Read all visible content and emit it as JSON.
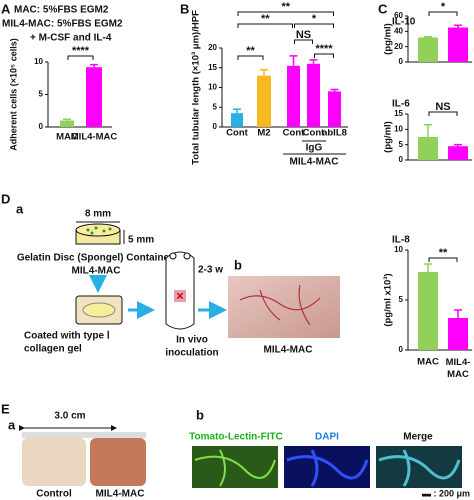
{
  "panels": {
    "A": {
      "label": "A",
      "conditions": [
        "MAC: 5%FBS EGM2",
        "MIL4-MAC: 5%FBS EGM2",
        "+ M-CSF and IL-4"
      ]
    },
    "B": {
      "label": "B",
      "groups": [
        "IgG",
        "MIL4-MAC"
      ]
    },
    "C": {
      "label": "C"
    },
    "D": {
      "label": "D",
      "sub_a": "a",
      "sub_b": "b",
      "disc_width": "8 mm",
      "disc_height": "5 mm",
      "disc_text": [
        "Gelatin Disc (Spongel) Contained",
        "MIL4-MAC"
      ],
      "coat_text": [
        "Coated with type Ⅰ",
        "collagen gel"
      ],
      "duration": "2-3 w",
      "inoculation": [
        "In vivo",
        "inoculation"
      ],
      "photo_label": "MIL4-MAC"
    },
    "E": {
      "label": "E",
      "sub_a": "a",
      "sub_b": "b",
      "ruler": "3.0 cm",
      "photo_labels": [
        "Control",
        "MIL4-MAC"
      ],
      "stains": [
        "Tomato-Lectin-FITC",
        "DAPI",
        "Merge"
      ],
      "scale": "▬ : 200 μm"
    }
  },
  "chart_data": [
    {
      "type": "bar",
      "ylabel": "Adherent cells (×10⁵ cells)",
      "categories": [
        "MAC",
        "MIL4-MAC"
      ],
      "values": [
        1.0,
        9.2
      ],
      "errors": [
        0.2,
        0.4
      ],
      "colors": [
        "#8fd15a",
        "#ff00ff"
      ],
      "ylim": [
        0,
        10
      ],
      "yticks": [
        0,
        5,
        10
      ],
      "annotations": [
        "****"
      ]
    },
    {
      "type": "bar",
      "ylabel": "Total tubular length (×10³ μm)/HPF",
      "categories": [
        "Cont",
        "M2",
        "Cont",
        "Cont",
        "abIL8"
      ],
      "values": [
        3.5,
        13,
        15.5,
        16,
        9
      ],
      "errors": [
        1,
        1.5,
        2.5,
        1,
        0.5
      ],
      "colors": [
        "#29aee6",
        "#f8b820",
        "#ff00ff",
        "#ff00ff",
        "#ff00ff"
      ],
      "ylim": [
        0,
        20
      ],
      "yticks": [
        0,
        5,
        10,
        15,
        20
      ],
      "annotations": [
        "**",
        "**",
        "*",
        "NS",
        "****",
        "**"
      ]
    },
    {
      "type": "bar",
      "title": "IL-10",
      "ylabel": "(pg/ml)",
      "categories": [
        null,
        null
      ],
      "values": [
        32,
        45
      ],
      "errors": [
        1,
        3
      ],
      "colors": [
        "#8fd15a",
        "#ff00ff"
      ],
      "ylim": [
        0,
        60
      ],
      "yticks": [
        0,
        20,
        40,
        60
      ],
      "annotations": [
        "*"
      ]
    },
    {
      "type": "bar",
      "title": "IL-6",
      "ylabel": "(pg/ml)",
      "categories": [
        null,
        null
      ],
      "values": [
        7.5,
        4.5
      ],
      "errors": [
        4,
        0.5
      ],
      "colors": [
        "#8fd15a",
        "#ff00ff"
      ],
      "ylim": [
        0,
        15
      ],
      "yticks": [
        0,
        5,
        10,
        15
      ],
      "annotations": [
        "NS"
      ]
    },
    {
      "type": "bar",
      "title": "IL-8",
      "ylabel": "(pg/ml x10³)",
      "categories": [
        "MAC",
        "MIL4-MAC"
      ],
      "values": [
        7.8,
        3.2
      ],
      "errors": [
        0.8,
        0.8
      ],
      "colors": [
        "#8fd15a",
        "#ff00ff"
      ],
      "ylim": [
        0,
        10
      ],
      "yticks": [
        0,
        5,
        10
      ],
      "annotations": [
        "**"
      ]
    }
  ]
}
